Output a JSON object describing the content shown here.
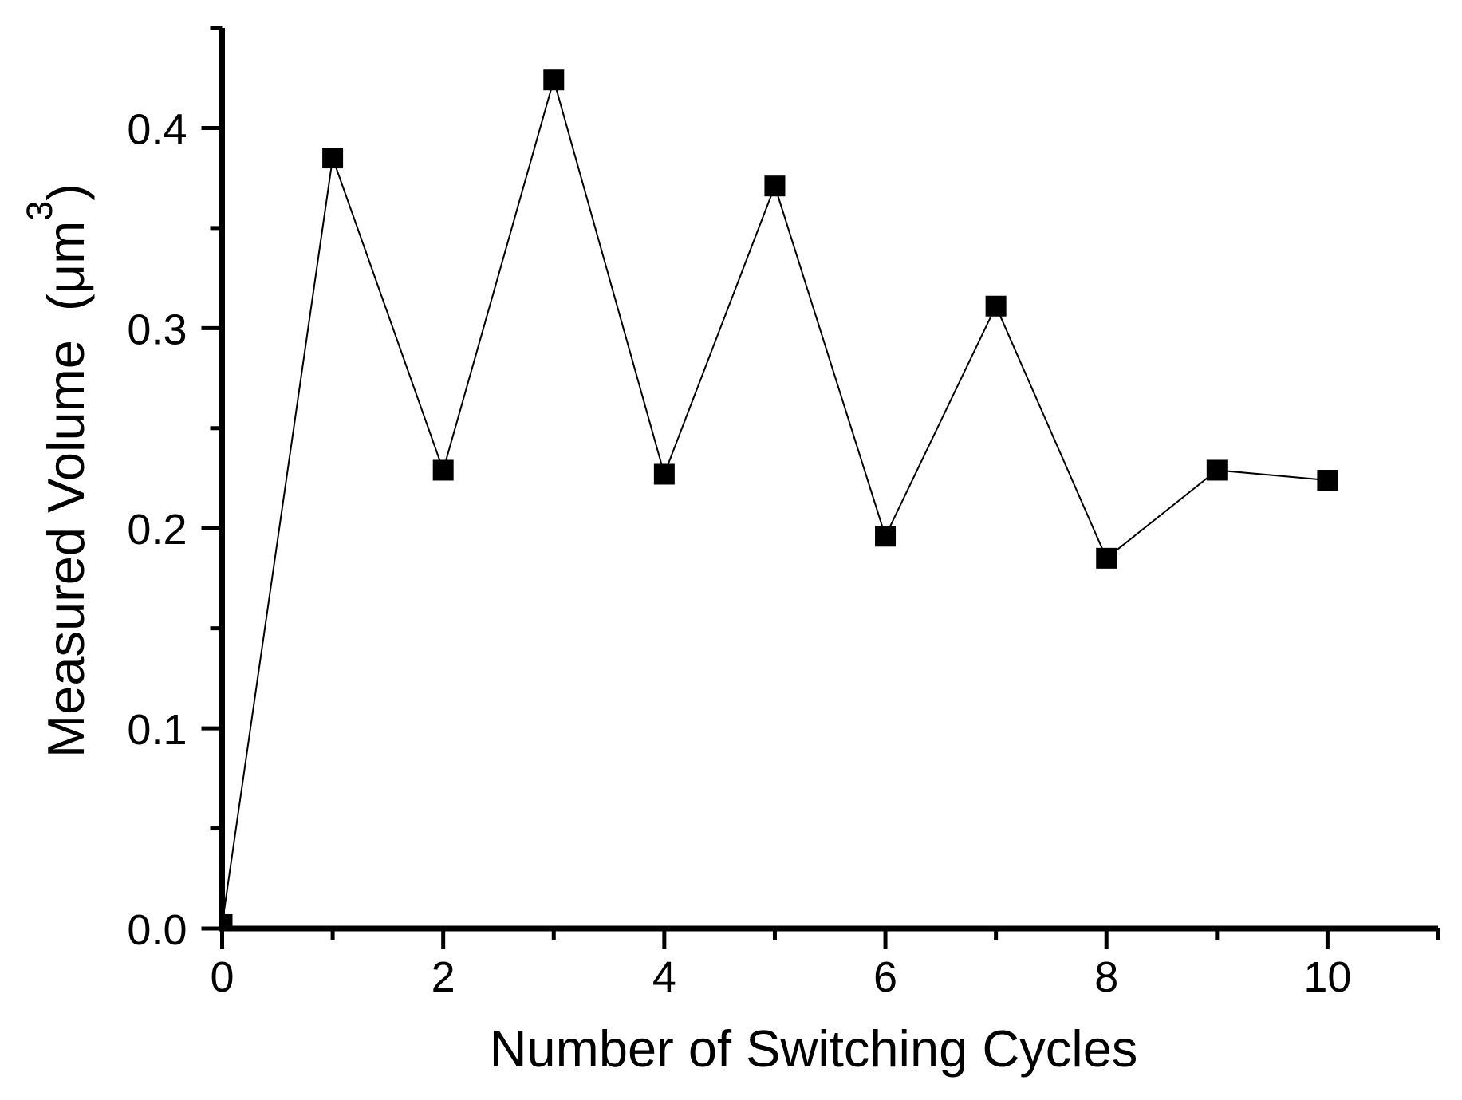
{
  "figure": {
    "background": "#ffffff",
    "description": "Scatter-line plot with black square markers on white background, single series, no grid, no legend"
  },
  "chart_data": {
    "type": "line",
    "title": "",
    "xlabel": "Number of Switching Cycles",
    "ylabel_pre": "Measured Volume  (μm",
    "ylabel_sup": "3",
    "ylabel_post": ")",
    "x": [
      0,
      1,
      2,
      3,
      4,
      5,
      6,
      7,
      8,
      9,
      10
    ],
    "values": [
      0.002,
      0.385,
      0.229,
      0.424,
      0.227,
      0.371,
      0.196,
      0.311,
      0.185,
      0.229,
      0.224
    ],
    "xlim": [
      0,
      11
    ],
    "ylim": [
      0,
      0.45
    ],
    "x_major_ticks": {
      "values": [
        0,
        2,
        4,
        6,
        8,
        10
      ],
      "labels": [
        "0",
        "2",
        "4",
        "6",
        "8",
        "10"
      ]
    },
    "x_minor_ticks": [
      1,
      3,
      5,
      7,
      9,
      11
    ],
    "y_major_ticks": {
      "values": [
        0,
        0.1,
        0.2,
        0.3,
        0.4
      ],
      "labels": [
        "0.0",
        "0.1",
        "0.2",
        "0.3",
        "0.4"
      ]
    },
    "y_minor_ticks": [
      0.05,
      0.15,
      0.25,
      0.35,
      0.45
    ],
    "grid": false,
    "legend": "none",
    "marker": "filled-square",
    "tick_direction": "out",
    "colors": {
      "line": "#000000",
      "marker": "#000000",
      "axis": "#000000",
      "text": "#000000",
      "background": "#ffffff"
    }
  }
}
